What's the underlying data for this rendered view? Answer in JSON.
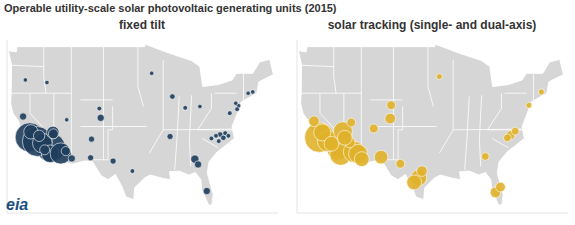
{
  "title": "Operable utility-scale solar photovoltaic generating units (2015)",
  "source": "eia",
  "chart_data": [
    {
      "type": "scatter",
      "title": "fixed tilt",
      "color": "#1f3d5c",
      "xlim": [
        -125,
        -66
      ],
      "ylim": [
        24,
        50
      ],
      "tick_labels": false,
      "x": [
        -120.05,
        -115.47,
        -118.4,
        -117.3,
        -115.6,
        -119.8,
        -116.8,
        -121.5,
        -118,
        -113.3,
        -112.2,
        -110.9,
        -115,
        -114.9,
        -106.6,
        -106.8,
        -104.6,
        -104.9,
        -101.9,
        -97.7,
        -78.6,
        -77.9,
        -79.5,
        -80.5,
        -77.5,
        -78.9,
        -76.8,
        -84.1,
        -83.4,
        -81.5,
        -74.6,
        -74.9,
        -75.2,
        -71.5,
        -72.5,
        -76.5,
        -93.5,
        -89,
        -83,
        -86.2,
        -89.5,
        -112,
        -121,
        -116.3
      ],
      "y": [
        35.38,
        33.83,
        34.75,
        34.5,
        32.9,
        36.2,
        33.5,
        38.5,
        35.6,
        32.95,
        33.3,
        32.2,
        36.1,
        35.9,
        35.1,
        32.3,
        38.3,
        39.7,
        31.8,
        30.3,
        35.8,
        35.3,
        35.6,
        35.2,
        36,
        34.8,
        35.6,
        32.1,
        31.3,
        27.3,
        40.1,
        39.6,
        40.5,
        42.2,
        42,
        39,
        45,
        41.5,
        40,
        39.8,
        35.5,
        38,
        44,
        43.6
      ],
      "size": [
        550,
        550,
        580,
        250,
        200,
        130,
        60,
        30,
        80,
        290,
        50,
        30,
        100,
        60,
        20,
        20,
        30,
        10,
        20,
        10,
        15,
        15,
        10,
        10,
        10,
        10,
        10,
        40,
        30,
        30,
        10,
        10,
        8,
        8,
        8,
        10,
        8,
        15,
        8,
        10,
        20,
        8,
        8,
        8
      ]
    },
    {
      "type": "scatter",
      "title": "solar tracking (single- and dual-axis)",
      "color": "#e0b12a",
      "xlim": [
        -125,
        -66
      ],
      "ylim": [
        24,
        50
      ],
      "tick_labels": false,
      "x": [
        -120.1,
        -116,
        -115.5,
        -118.3,
        -119.5,
        -117.5,
        -121.3,
        -112.6,
        -111.7,
        -110.9,
        -113.5,
        -115,
        -114.6,
        -113.2,
        -106.7,
        -108.3,
        -104.7,
        -104.5,
        -98.5,
        -99.5,
        -97.8,
        -102.5,
        -81.8,
        -80.7,
        -78.5,
        -79.2,
        -77.5,
        -84,
        -71.8,
        -74.5,
        -94
      ],
      "y": [
        35.35,
        33.7,
        32.8,
        34.8,
        36.1,
        34.4,
        37.8,
        33.2,
        32.9,
        32.1,
        34.6,
        36.3,
        35.3,
        37.6,
        32.4,
        36.7,
        38.2,
        40.2,
        29.3,
        28.6,
        30.3,
        31.4,
        27.1,
        27.9,
        35.7,
        35.3,
        36.3,
        32.5,
        42.2,
        40.2,
        44.5
      ],
      "size": [
        250,
        150,
        130,
        120,
        80,
        60,
        30,
        125,
        100,
        60,
        30,
        100,
        60,
        20,
        50,
        20,
        30,
        20,
        70,
        60,
        30,
        20,
        30,
        25,
        20,
        15,
        15,
        15,
        8,
        8,
        8
      ]
    }
  ]
}
